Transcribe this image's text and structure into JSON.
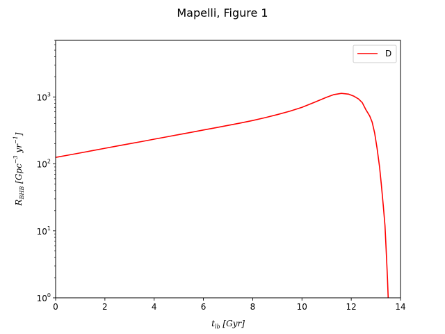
{
  "figure": {
    "title": "Mapelli, Figure 1"
  },
  "chart_data": {
    "type": "line",
    "title": "Mapelli, Figure 1",
    "xlabel": "t_lb [Gyr]",
    "ylabel": "R_BHB [Gpc^-3 yr^-1]",
    "x_scale": "linear",
    "y_scale": "log",
    "xlim": [
      0,
      14
    ],
    "ylim": [
      1,
      7000
    ],
    "x_ticks": [
      0,
      2,
      4,
      6,
      8,
      10,
      12,
      14
    ],
    "x_tick_labels": [
      "0",
      "2",
      "4",
      "6",
      "8",
      "10",
      "12",
      "14"
    ],
    "y_ticks": [
      1,
      10,
      100,
      1000
    ],
    "y_tick_labels": [
      {
        "base": "10",
        "exp": "0"
      },
      {
        "base": "10",
        "exp": "1"
      },
      {
        "base": "10",
        "exp": "2"
      },
      {
        "base": "10",
        "exp": "3"
      }
    ],
    "grid": false,
    "legend_position": "top-right",
    "series": [
      {
        "name": "D",
        "color": "#ff0000",
        "x": [
          0,
          0.5,
          1,
          1.5,
          2,
          2.5,
          3,
          3.5,
          4,
          4.5,
          5,
          5.5,
          6,
          6.5,
          7,
          7.5,
          8,
          8.5,
          9,
          9.5,
          10,
          10.5,
          11,
          11.3,
          11.6,
          11.9,
          12.1,
          12.3,
          12.45,
          12.6,
          12.75,
          12.85,
          12.95,
          13.05,
          13.15,
          13.22,
          13.3,
          13.37,
          13.42,
          13.47,
          13.5
        ],
        "y": [
          125,
          135,
          146,
          158,
          171,
          185,
          200,
          216,
          234,
          253,
          274,
          296,
          321,
          347,
          376,
          408,
          445,
          490,
          545,
          612,
          700,
          830,
          990,
          1085,
          1130,
          1100,
          1030,
          930,
          820,
          640,
          520,
          420,
          290,
          170,
          90,
          50,
          24,
          12,
          5,
          2,
          1
        ]
      }
    ]
  }
}
